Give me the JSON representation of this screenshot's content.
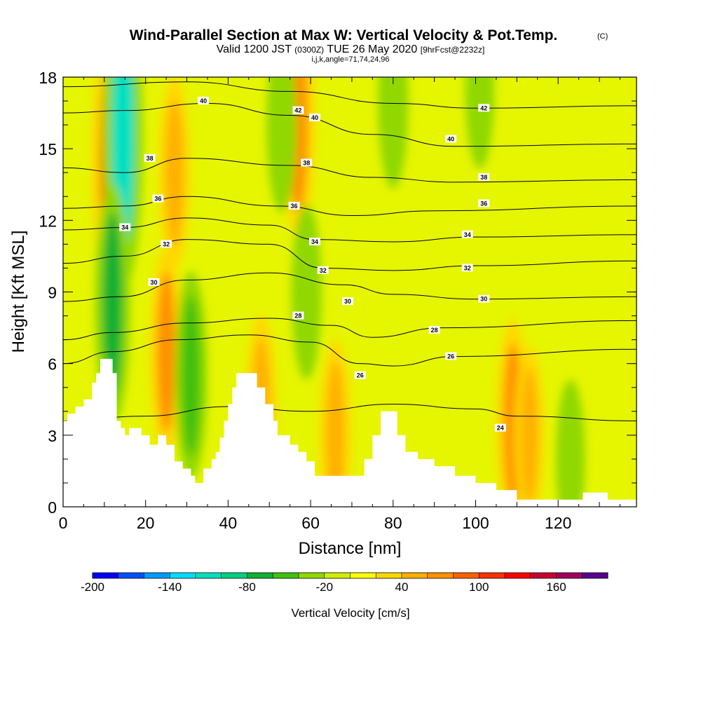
{
  "chart_data": {
    "type": "heatmap",
    "title": "Wind-Parallel Section at Max W: Vertical Velocity & Pot.Temp.",
    "title_mark": "(C)",
    "subtitle_parts": [
      "Valid 1200 JST",
      "(0300Z)",
      "TUE 26 May 2020",
      "[9hrFcst@2232z]"
    ],
    "subtitle2": "i,j,k,angle=71,74,24,96",
    "xlabel": "Distance [nm]",
    "ylabel": "Height [Kft MSL]",
    "xlim": [
      0,
      139
    ],
    "ylim": [
      0,
      18
    ],
    "x_ticks": [
      "0",
      "20",
      "40",
      "60",
      "80",
      "100",
      "120"
    ],
    "x_tick_values": [
      0,
      20,
      40,
      60,
      80,
      100,
      120
    ],
    "y_ticks": [
      "0",
      "3",
      "6",
      "9",
      "12",
      "15",
      "18"
    ],
    "y_tick_values": [
      0,
      3,
      6,
      9,
      12,
      15,
      18
    ],
    "colorbar": {
      "title": "Vertical Velocity [cm/s]",
      "min": -200,
      "max": 200,
      "step": 20,
      "tick_labels": [
        "-200",
        "-140",
        "-80",
        "-20",
        "40",
        "100",
        "160"
      ],
      "tick_values": [
        -200,
        -140,
        -80,
        -20,
        40,
        100,
        160
      ],
      "colors": [
        "#0000ff",
        "#0050ff",
        "#0099ff",
        "#00dcff",
        "#00e0c0",
        "#00d080",
        "#10b030",
        "#40c010",
        "#90d800",
        "#d0ee00",
        "#ffff00",
        "#ffd800",
        "#ffb000",
        "#ff9000",
        "#ff6000",
        "#ff3000",
        "#ff0000",
        "#cc0030",
        "#a00060",
        "#5a0090"
      ]
    },
    "terrain": [
      {
        "x": 0,
        "y": 3.6
      },
      {
        "x": 1,
        "y": 3.9
      },
      {
        "x": 3,
        "y": 4.2
      },
      {
        "x": 5,
        "y": 4.5
      },
      {
        "x": 7,
        "y": 5.2
      },
      {
        "x": 8,
        "y": 5.6
      },
      {
        "x": 9,
        "y": 6.2
      },
      {
        "x": 11,
        "y": 6.2
      },
      {
        "x": 12,
        "y": 5.6
      },
      {
        "x": 13,
        "y": 3.6
      },
      {
        "x": 14,
        "y": 3.3
      },
      {
        "x": 15,
        "y": 3.0
      },
      {
        "x": 16,
        "y": 3.3
      },
      {
        "x": 17,
        "y": 3.3
      },
      {
        "x": 19,
        "y": 3.0
      },
      {
        "x": 21,
        "y": 2.6
      },
      {
        "x": 23,
        "y": 3.0
      },
      {
        "x": 25,
        "y": 2.6
      },
      {
        "x": 27,
        "y": 1.9
      },
      {
        "x": 29,
        "y": 1.6
      },
      {
        "x": 31,
        "y": 1.3
      },
      {
        "x": 32,
        "y": 1.0
      },
      {
        "x": 34,
        "y": 1.6
      },
      {
        "x": 36,
        "y": 2.0
      },
      {
        "x": 37,
        "y": 2.3
      },
      {
        "x": 38,
        "y": 2.9
      },
      {
        "x": 39,
        "y": 3.6
      },
      {
        "x": 40,
        "y": 4.3
      },
      {
        "x": 41,
        "y": 5.0
      },
      {
        "x": 42,
        "y": 5.6
      },
      {
        "x": 45,
        "y": 5.6
      },
      {
        "x": 47,
        "y": 5.0
      },
      {
        "x": 49,
        "y": 4.3
      },
      {
        "x": 51,
        "y": 3.6
      },
      {
        "x": 52,
        "y": 3.0
      },
      {
        "x": 55,
        "y": 2.6
      },
      {
        "x": 57,
        "y": 2.3
      },
      {
        "x": 59,
        "y": 1.9
      },
      {
        "x": 61,
        "y": 1.3
      },
      {
        "x": 71,
        "y": 1.3
      },
      {
        "x": 73,
        "y": 2.0
      },
      {
        "x": 75,
        "y": 3.0
      },
      {
        "x": 77,
        "y": 4.0
      },
      {
        "x": 79,
        "y": 4.0
      },
      {
        "x": 81,
        "y": 3.0
      },
      {
        "x": 83,
        "y": 2.3
      },
      {
        "x": 86,
        "y": 2.0
      },
      {
        "x": 90,
        "y": 1.7
      },
      {
        "x": 95,
        "y": 1.3
      },
      {
        "x": 100,
        "y": 1.0
      },
      {
        "x": 105,
        "y": 0.7
      },
      {
        "x": 110,
        "y": 0.3
      },
      {
        "x": 124,
        "y": 0.3
      },
      {
        "x": 126,
        "y": 0.6
      },
      {
        "x": 131,
        "y": 0.6
      },
      {
        "x": 132,
        "y": 0.3
      },
      {
        "x": 139,
        "y": 0.3
      }
    ],
    "features": [
      {
        "kind": "updraft",
        "x": 11.5,
        "y": 14.5,
        "w": 100
      },
      {
        "kind": "downdraft",
        "x": 14.5,
        "y": 15.5,
        "w": -120
      },
      {
        "kind": "downdraft",
        "x": 12,
        "y": 8.5,
        "w": -80
      },
      {
        "kind": "updraft",
        "x": 25,
        "y": 6.5,
        "w": 60
      },
      {
        "kind": "downdraft",
        "x": 31,
        "y": 5.5,
        "w": -60
      },
      {
        "kind": "updraft",
        "x": 27,
        "y": 14.0,
        "w": 50
      },
      {
        "kind": "updraft",
        "x": 48,
        "y": 4.0,
        "w": 50
      },
      {
        "kind": "updraft",
        "x": 57,
        "y": 16.0,
        "w": 70
      },
      {
        "kind": "downdraft",
        "x": 53,
        "y": 16.0,
        "w": -40
      },
      {
        "kind": "downdraft",
        "x": 59,
        "y": 9.0,
        "w": -40
      },
      {
        "kind": "updraft",
        "x": 66,
        "y": 3.0,
        "w": 50
      },
      {
        "kind": "updraft",
        "x": 109,
        "y": 3.5,
        "w": 60
      },
      {
        "kind": "updraft",
        "x": 113,
        "y": 3.0,
        "w": 40
      },
      {
        "kind": "downdraft",
        "x": 123,
        "y": 2.0,
        "w": -30
      },
      {
        "kind": "downdraft",
        "x": 80,
        "y": 17.0,
        "w": -40
      },
      {
        "kind": "downdraft",
        "x": 101,
        "y": 17.5,
        "w": -30
      }
    ],
    "isentropes": [
      {
        "label": "24",
        "points": [
          {
            "x": 0,
            "y": 3.6
          },
          {
            "x": 20,
            "y": 3.8
          },
          {
            "x": 40,
            "y": 4.2
          },
          {
            "x": 60,
            "y": 4.0
          },
          {
            "x": 80,
            "y": 4.3
          },
          {
            "x": 100,
            "y": 4.1
          },
          {
            "x": 110,
            "y": 3.8
          },
          {
            "x": 139,
            "y": 3.6
          }
        ],
        "labels_at": [
          {
            "x": 106,
            "y": 3.3
          }
        ]
      },
      {
        "label": "26",
        "points": [
          {
            "x": 0,
            "y": 6.0
          },
          {
            "x": 12,
            "y": 6.5
          },
          {
            "x": 28,
            "y": 7.0
          },
          {
            "x": 45,
            "y": 7.2
          },
          {
            "x": 60,
            "y": 6.9
          },
          {
            "x": 72,
            "y": 6.0
          },
          {
            "x": 80,
            "y": 5.9
          },
          {
            "x": 95,
            "y": 6.3
          },
          {
            "x": 139,
            "y": 6.6
          }
        ],
        "labels_at": [
          {
            "x": 72,
            "y": 5.5
          },
          {
            "x": 94,
            "y": 6.3
          }
        ]
      },
      {
        "label": "28",
        "points": [
          {
            "x": 0,
            "y": 7.0
          },
          {
            "x": 12,
            "y": 7.3
          },
          {
            "x": 30,
            "y": 7.7
          },
          {
            "x": 50,
            "y": 7.9
          },
          {
            "x": 65,
            "y": 7.6
          },
          {
            "x": 75,
            "y": 7.1
          },
          {
            "x": 92,
            "y": 7.5
          },
          {
            "x": 139,
            "y": 7.8
          }
        ],
        "labels_at": [
          {
            "x": 57,
            "y": 8.0
          },
          {
            "x": 90,
            "y": 7.4
          }
        ]
      },
      {
        "label": "30",
        "points": [
          {
            "x": 0,
            "y": 8.6
          },
          {
            "x": 14,
            "y": 8.8
          },
          {
            "x": 30,
            "y": 9.5
          },
          {
            "x": 50,
            "y": 9.8
          },
          {
            "x": 68,
            "y": 9.3
          },
          {
            "x": 80,
            "y": 8.9
          },
          {
            "x": 100,
            "y": 8.7
          },
          {
            "x": 139,
            "y": 8.8
          }
        ],
        "labels_at": [
          {
            "x": 22,
            "y": 9.4
          },
          {
            "x": 69,
            "y": 8.6
          },
          {
            "x": 102,
            "y": 8.7
          }
        ]
      },
      {
        "label": "32",
        "points": [
          {
            "x": 0,
            "y": 10.2
          },
          {
            "x": 15,
            "y": 10.5
          },
          {
            "x": 30,
            "y": 11.2
          },
          {
            "x": 50,
            "y": 11.0
          },
          {
            "x": 63,
            "y": 10.0
          },
          {
            "x": 80,
            "y": 9.9
          },
          {
            "x": 100,
            "y": 10.1
          },
          {
            "x": 139,
            "y": 10.3
          }
        ],
        "labels_at": [
          {
            "x": 25,
            "y": 11.0
          },
          {
            "x": 63,
            "y": 9.9
          },
          {
            "x": 98,
            "y": 10.0
          }
        ]
      },
      {
        "label": "34",
        "points": [
          {
            "x": 0,
            "y": 11.6
          },
          {
            "x": 15,
            "y": 11.7
          },
          {
            "x": 30,
            "y": 12.1
          },
          {
            "x": 50,
            "y": 11.8
          },
          {
            "x": 61,
            "y": 11.2
          },
          {
            "x": 80,
            "y": 11.1
          },
          {
            "x": 100,
            "y": 11.3
          },
          {
            "x": 139,
            "y": 11.4
          }
        ],
        "labels_at": [
          {
            "x": 15,
            "y": 11.7
          },
          {
            "x": 61,
            "y": 11.1
          },
          {
            "x": 98,
            "y": 11.4
          }
        ]
      },
      {
        "label": "36",
        "points": [
          {
            "x": 0,
            "y": 12.5
          },
          {
            "x": 15,
            "y": 12.6
          },
          {
            "x": 30,
            "y": 13.0
          },
          {
            "x": 52,
            "y": 12.6
          },
          {
            "x": 70,
            "y": 12.2
          },
          {
            "x": 90,
            "y": 12.4
          },
          {
            "x": 139,
            "y": 12.6
          }
        ],
        "labels_at": [
          {
            "x": 23,
            "y": 12.9
          },
          {
            "x": 56,
            "y": 12.6
          },
          {
            "x": 102,
            "y": 12.7
          }
        ]
      },
      {
        "label": "38",
        "points": [
          {
            "x": 0,
            "y": 14.2
          },
          {
            "x": 15,
            "y": 14.0
          },
          {
            "x": 30,
            "y": 14.6
          },
          {
            "x": 55,
            "y": 14.3
          },
          {
            "x": 75,
            "y": 13.8
          },
          {
            "x": 95,
            "y": 13.6
          },
          {
            "x": 139,
            "y": 13.7
          }
        ],
        "labels_at": [
          {
            "x": 21,
            "y": 14.6
          },
          {
            "x": 59,
            "y": 14.4
          },
          {
            "x": 102,
            "y": 13.8
          }
        ]
      },
      {
        "label": "40",
        "points": [
          {
            "x": 0,
            "y": 16.5
          },
          {
            "x": 15,
            "y": 16.6
          },
          {
            "x": 35,
            "y": 16.9
          },
          {
            "x": 55,
            "y": 16.4
          },
          {
            "x": 75,
            "y": 15.6
          },
          {
            "x": 95,
            "y": 15.1
          },
          {
            "x": 139,
            "y": 15.2
          }
        ],
        "labels_at": [
          {
            "x": 34,
            "y": 17.0
          },
          {
            "x": 61,
            "y": 16.3
          },
          {
            "x": 94,
            "y": 15.4
          }
        ]
      },
      {
        "label": "42",
        "points": [
          {
            "x": 0,
            "y": 17.6
          },
          {
            "x": 30,
            "y": 17.8
          },
          {
            "x": 55,
            "y": 17.4
          },
          {
            "x": 80,
            "y": 16.9
          },
          {
            "x": 100,
            "y": 16.7
          },
          {
            "x": 139,
            "y": 16.8
          }
        ],
        "labels_at": [
          {
            "x": 57,
            "y": 16.6
          },
          {
            "x": 102,
            "y": 16.7
          }
        ]
      }
    ]
  }
}
